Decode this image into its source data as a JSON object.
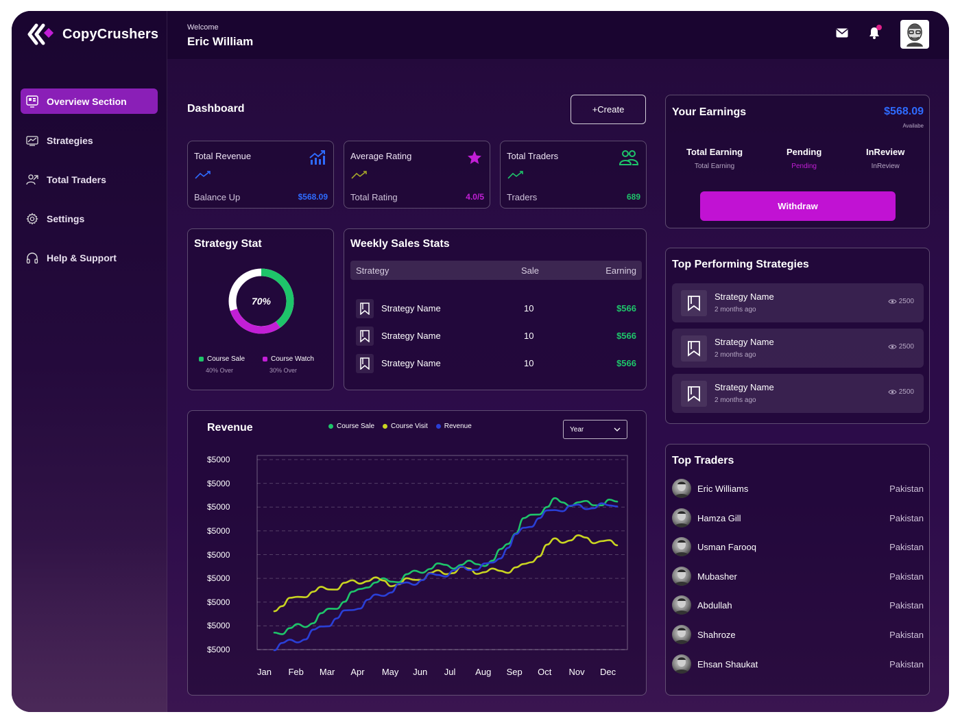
{
  "app": {
    "name": "CopyCrushers"
  },
  "header": {
    "welcome": "Welcome",
    "user_name": "Eric William"
  },
  "sidebar": {
    "items": [
      {
        "label": "Overview Section",
        "icon": "overview-icon",
        "active": true
      },
      {
        "label": "Strategies",
        "icon": "strategies-icon",
        "active": false
      },
      {
        "label": "Total Traders",
        "icon": "traders-icon",
        "active": false
      },
      {
        "label": "Settings",
        "icon": "gear-icon",
        "active": false
      },
      {
        "label": "Help & Support",
        "icon": "headphones-icon",
        "active": false
      }
    ]
  },
  "dashboard": {
    "title": "Dashboard",
    "create_label": "+Create"
  },
  "stats": {
    "revenue": {
      "label": "Total Revenue",
      "sub": "Balance Up",
      "value": "$568.09",
      "color": "#2e6bff"
    },
    "rating": {
      "label": "Average Rating",
      "sub": "Total Rating",
      "value": "4.0/5",
      "color": "#c21fd6"
    },
    "traders": {
      "label": "Total Traders",
      "sub": "Traders",
      "value": "689",
      "color": "#1ec46a"
    }
  },
  "strategy_stat": {
    "title": "Strategy Stat",
    "percent_label": "70%",
    "legend": [
      {
        "label": "Course Sale",
        "sub": "40% Over",
        "color": "#1ec46a"
      },
      {
        "label": "Course Watch",
        "sub": "30% Over",
        "color": "#c21fd6"
      }
    ]
  },
  "weekly_sales": {
    "title": "Weekly Sales Stats",
    "columns": [
      "Strategy",
      "Sale",
      "Earning"
    ],
    "rows": [
      {
        "name": "Strategy Name",
        "sale": "10",
        "earning": "$566"
      },
      {
        "name": "Strategy Name",
        "sale": "10",
        "earning": "$566"
      },
      {
        "name": "Strategy Name",
        "sale": "10",
        "earning": "$566"
      }
    ]
  },
  "earnings": {
    "title": "Your Earnings",
    "amount": "$568.09",
    "amount_sub": "Availabe",
    "columns": [
      {
        "head": "Total Earning",
        "sub": "Total Earning",
        "sub_color": "#b6a8c4"
      },
      {
        "head": "Pending",
        "sub": "Pending",
        "sub_color": "#c21fd6"
      },
      {
        "head": "InReview",
        "sub": "InReview",
        "sub_color": "#b6a8c4"
      }
    ],
    "withdraw_label": "Withdraw"
  },
  "top_strategies": {
    "title": "Top Performing Strategies",
    "items": [
      {
        "name": "Strategy Name",
        "date": "2 months ago",
        "views": "2500"
      },
      {
        "name": "Strategy Name",
        "date": "2 months ago",
        "views": "2500"
      },
      {
        "name": "Strategy Name",
        "date": "2 months ago",
        "views": "2500"
      }
    ]
  },
  "top_traders": {
    "title": "Top Traders",
    "items": [
      {
        "name": "Eric Williams",
        "country": "Pakistan"
      },
      {
        "name": "Hamza Gill",
        "country": "Pakistan"
      },
      {
        "name": "Usman Farooq",
        "country": "Pakistan"
      },
      {
        "name": "Mubasher",
        "country": "Pakistan"
      },
      {
        "name": "Abdullah",
        "country": "Pakistan"
      },
      {
        "name": "Shahroze",
        "country": "Pakistan"
      },
      {
        "name": "Ehsan Shaukat",
        "country": "Pakistan"
      }
    ]
  },
  "chart_data": {
    "type": "line",
    "title": "Revenue",
    "period_select": "Year",
    "categories": [
      "Jan",
      "Feb",
      "Mar",
      "Apr",
      "May",
      "Jun",
      "Jul",
      "Aug",
      "Sep",
      "Oct",
      "Nov",
      "Dec"
    ],
    "y_tick_labels": [
      "$5000",
      "$5000",
      "$5000",
      "$5000",
      "$5000",
      "$5000",
      "$5000",
      "$5000",
      "$5000"
    ],
    "ylim": [
      0,
      8
    ],
    "grid": true,
    "legend_position": "top-center",
    "series": [
      {
        "name": "Course Sale",
        "color": "#1ec46a",
        "values": [
          0.7,
          1.0,
          1.8,
          2.7,
          2.9,
          3.4,
          3.5,
          3.6,
          5.3,
          6.1,
          6.0,
          6.1
        ]
      },
      {
        "name": "Course Visit",
        "color": "#c9d421",
        "values": [
          1.7,
          2.3,
          2.6,
          2.9,
          2.7,
          3.1,
          3.3,
          3.2,
          3.4,
          4.5,
          4.6,
          4.3
        ]
      },
      {
        "name": "Revenue",
        "color": "#2a3fd6",
        "values": [
          0.1,
          0.5,
          1.3,
          2.0,
          2.6,
          3.0,
          3.3,
          3.5,
          5.0,
          5.8,
          5.9,
          5.9
        ]
      }
    ]
  }
}
